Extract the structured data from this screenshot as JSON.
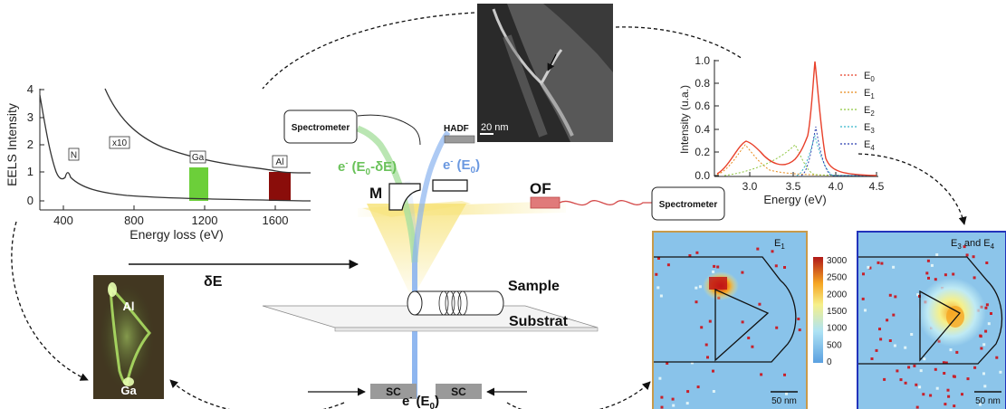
{
  "eels": {
    "y_axis_label": "EELS Intensity",
    "x_axis_label": "Energy loss (eV)",
    "x_ticks": [
      "400",
      "800",
      "1200",
      "1600"
    ],
    "y_ticks": [
      "0",
      "1",
      "2",
      "3",
      "4"
    ],
    "tags": {
      "n": "N",
      "x10": "x10",
      "ga": "Ga",
      "al": "Al"
    }
  },
  "spectrum": {
    "y_axis_label": "Intensity (u.a.)",
    "x_axis_label": "Energy (eV)",
    "x_ticks": [
      "3.0",
      "3.5",
      "4.0",
      "4.5"
    ],
    "y_ticks": [
      "0.0",
      "0.2",
      "0.4",
      "0.6",
      "0.8",
      "1.0"
    ],
    "legend": [
      {
        "base": "E",
        "sub": "0",
        "color": "#e8402a"
      },
      {
        "base": "E",
        "sub": "1",
        "color": "#e88a1a"
      },
      {
        "base": "E",
        "sub": "2",
        "color": "#8ec63f"
      },
      {
        "base": "E",
        "sub": "3",
        "color": "#36b7c9"
      },
      {
        "base": "E",
        "sub": "4",
        "color": "#2a3fb0"
      }
    ]
  },
  "setup": {
    "spectrometer_top": "Spectrometer",
    "spectrometer_right": "Spectrometer",
    "hadf": "HADF",
    "beam_loss": {
      "prefix": "e",
      "sup": "-",
      "open": " (E",
      "sub": "0",
      "rest": "-δE)"
    },
    "beam_elastic": {
      "prefix": "e",
      "sup": "-",
      "open": " (E",
      "sub": "0",
      "rest": ")"
    },
    "beam_bottom": {
      "prefix": "e",
      "sup": "-",
      "open": " (E",
      "sub": "0",
      "rest": ")"
    },
    "mirror": "M",
    "optical_fiber": "OF",
    "delta_e": "δE",
    "sample": "Sample",
    "substrate": "Substrat",
    "sc_left": "SC",
    "sc_right": "SC"
  },
  "images": {
    "haadf_scalebar": "20 nm",
    "cl_top": "Al",
    "cl_bottom": "Ga",
    "map1_label": {
      "base": "E",
      "sub": "1"
    },
    "map2_label": {
      "text1": "E",
      "sub1": "3",
      "mid": " and E",
      "sub2": "4"
    },
    "map1_scalebar": "50 nm",
    "map2_scalebar": "50 nm",
    "colorbar_ticks": [
      "3000",
      "2500",
      "2000",
      "1500",
      "1000",
      "500",
      "0"
    ]
  },
  "colors": {
    "ga_bar": "#6ccf3a",
    "al_bar": "#8a0d0a",
    "elastic_beam": "#8ab4f0",
    "loss_beam": "#a9e0a0",
    "light_cone": "#f7e37a",
    "fiber": "#d44a4a",
    "map1_frame": "#c89a4a",
    "map2_frame": "#2233bb"
  }
}
